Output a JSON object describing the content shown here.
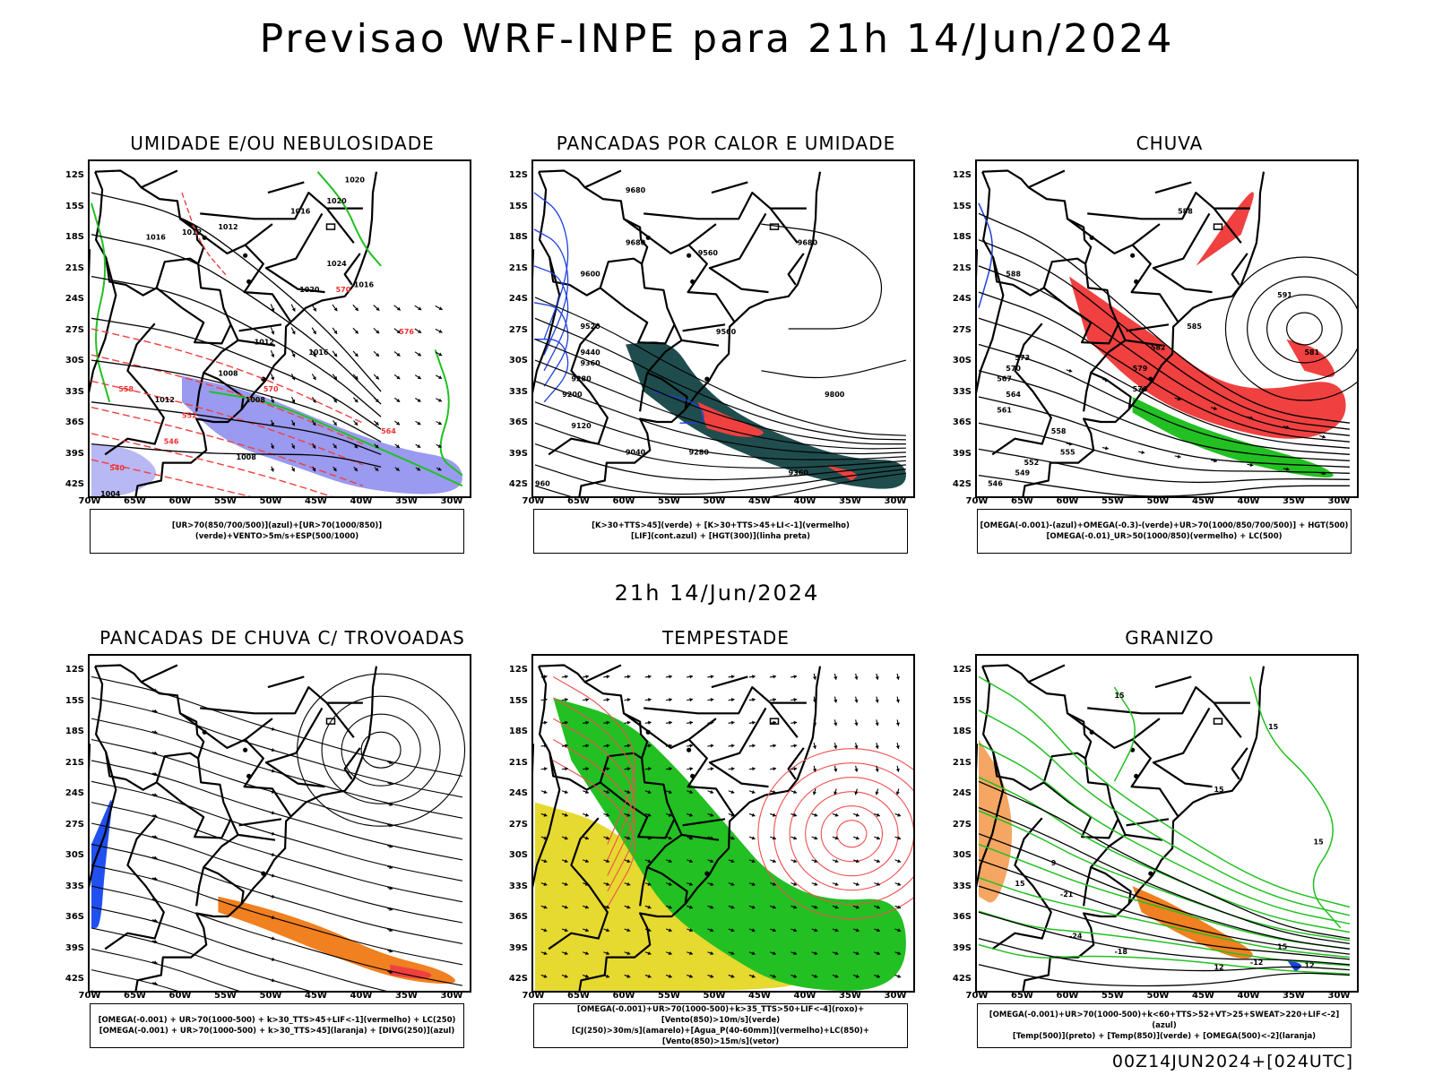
{
  "title": "Previsao WRF-INPE  para 21h 14/Jun/2024",
  "mid_title": "21h 14/Jun/2024",
  "footer": "00Z14JUN2024+[024UTC]",
  "axes": {
    "lat": [
      "12S",
      "15S",
      "18S",
      "21S",
      "24S",
      "27S",
      "30S",
      "33S",
      "36S",
      "39S",
      "42S"
    ],
    "lon": [
      "70W",
      "65W",
      "60W",
      "55W",
      "50W",
      "45W",
      "40W",
      "35W",
      "30W"
    ]
  },
  "panels": [
    {
      "id": "umidade",
      "title": "UMIDADE E/OU NEBULOSIDADE",
      "legend": [
        "[UR>70(850/700/500)](azul)+[UR>70(1000/850)](verde)+VENTO>5m/s+ESP(500/1000)"
      ],
      "contour_labels": [
        "1012",
        "1012",
        "1016",
        "1020",
        "1020",
        "1024",
        "1020",
        "1016",
        "1012",
        "1008",
        "1008",
        "1016",
        "1008",
        "1012",
        "1016",
        "1004",
        "570",
        "576",
        "570",
        "564",
        "558",
        "552",
        "546",
        "540"
      ],
      "colors": {
        "humid_upper": "#9a9af0",
        "humid_lower": "#22c022",
        "thickness": "#f04040",
        "pressure": "#000000"
      }
    },
    {
      "id": "pancadas-calor",
      "title": "PANCADAS POR CALOR E UMIDADE",
      "legend": [
        "[K>30+TTS>45](verde) + [K>30+TTS>45+LI<-1](vermelho)",
        "[LIF](cont.azul) + [HGT(300)](linha preta)"
      ],
      "contour_labels": [
        "9680",
        "9680",
        "9600",
        "9560",
        "9680",
        "9520",
        "9440",
        "9360",
        "9280",
        "9200",
        "9120",
        "9040",
        "9800",
        "9560",
        "9280",
        "9360",
        "960"
      ],
      "colors": {
        "tts": "#1f4d4d",
        "li": "#f04040",
        "lif": "#2040e0"
      }
    },
    {
      "id": "chuva",
      "title": "CHUVA",
      "legend": [
        "[OMEGA(-0.001)-(azul)+OMEGA(-0.3)-(verde)+UR>70(1000/850/700/500)] + HGT(500)",
        "[OMEGA(-0.01)_UR>50(1000/850)(vermelho) + LC(500)"
      ],
      "contour_labels": [
        "588",
        "591",
        "585",
        "582",
        "579",
        "576",
        "573",
        "570",
        "567",
        "564",
        "561",
        "558",
        "555",
        "552",
        "549",
        "546",
        "588",
        "581"
      ],
      "colors": {
        "rain": "#f04040",
        "omega_strong": "#22c022",
        "omega_weak": "#2040e0"
      }
    },
    {
      "id": "trovoadas",
      "title": "PANCADAS DE CHUVA C/ TROVOADAS",
      "legend": [
        "[OMEGA(-0.001) + UR>70(1000-500) + k>30_TTS>45+LIF<-1](vermelho) + LC(250)",
        "[OMEGA(-0.001) + UR>70(1000-500) + k>30_TTS>45](laranja) + [DIVG(250)](azul)"
      ],
      "contour_labels": [],
      "colors": {
        "strong": "#f04040",
        "moderate": "#f08020",
        "divg": "#2050f0"
      }
    },
    {
      "id": "tempestade",
      "title": "TEMPESTADE",
      "legend": [
        "[OMEGA(-0.001)+UR>70(1000-500)+k>35_TTS>50+LIF<-4](roxo)+[Vento(850)>10m/s](verde)",
        "[CJ(250)>30m/s](amarelo)+[Agua_P(40-60mm)](vermelho)+LC(850)+[Vento(850)>15m/s](vetor)"
      ],
      "contour_labels": [],
      "colors": {
        "wind": "#22c022",
        "jet": "#e6d930",
        "water": "#f05050"
      }
    },
    {
      "id": "granizo",
      "title": "GRANIZO",
      "legend": [
        "[OMEGA(-0.001)+UR>70(1000-500)+k<60+TTS>52+VT>25+SWEAT>220+LIF<-2](azul)",
        "[Temp(500)](preto) + [Temp(850)](verde) + [OMEGA(500)<-2](laranja)"
      ],
      "contour_labels": [
        "15",
        "-21",
        "-24",
        "-18",
        "-12",
        "15",
        "15",
        "15",
        "15",
        "12",
        "9",
        "15",
        "12"
      ],
      "colors": {
        "temp850": "#22c022",
        "omega": "#f08020",
        "hail": "#2040e0"
      }
    }
  ]
}
